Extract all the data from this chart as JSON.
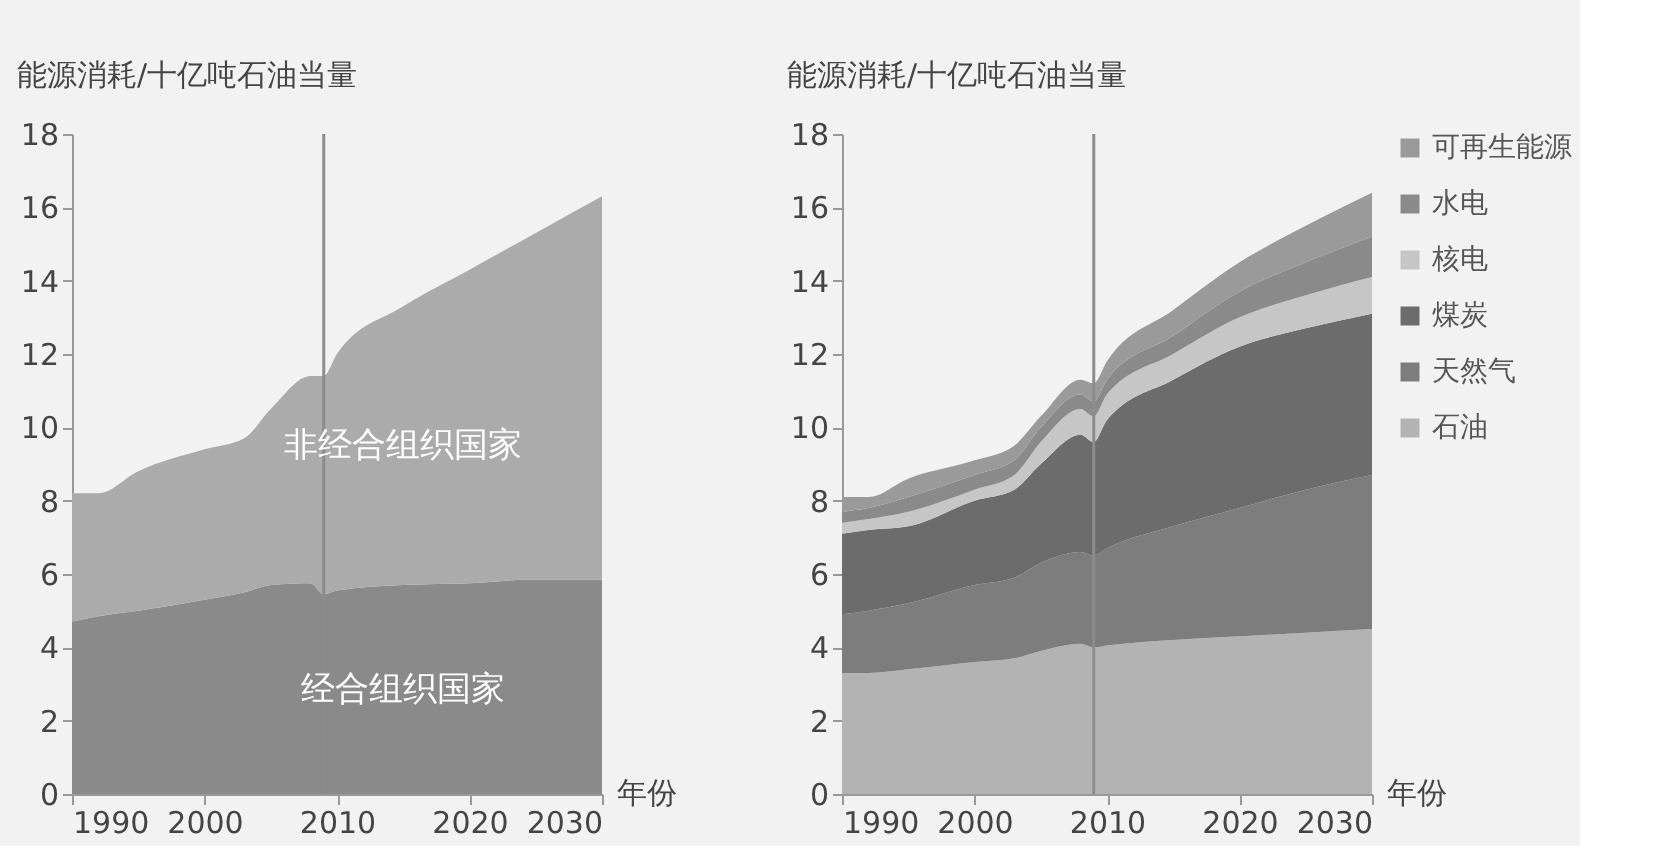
{
  "chart_data": [
    {
      "type": "area",
      "stacked": true,
      "ylabel": "能源消耗/十亿吨石油当量",
      "xlabel": "年份",
      "legend": false,
      "x": [
        1990,
        1992,
        1995,
        2000,
        2003,
        2005,
        2008,
        2009,
        2010,
        2015,
        2020,
        2025,
        2030
      ],
      "xlim": [
        1990,
        2030
      ],
      "xticks": [
        1990,
        2000,
        2010,
        2020,
        2030
      ],
      "ylim": [
        0,
        18
      ],
      "yticks": [
        0,
        2,
        4,
        6,
        8,
        10,
        12,
        14,
        16,
        18
      ],
      "grid": false,
      "ref_lines": [
        {
          "axis": "x",
          "value": 2009,
          "color": "#8c8c8c"
        }
      ],
      "series": [
        {
          "name": "经合组织国家",
          "color": "#8a8a8a",
          "values": [
            4.7,
            4.85,
            5.0,
            5.3,
            5.5,
            5.7,
            5.75,
            5.45,
            5.55,
            5.7,
            5.75,
            5.85,
            5.85
          ]
        },
        {
          "name": "非经合组织国家",
          "color": "#ababab",
          "values": [
            3.5,
            3.35,
            3.8,
            4.1,
            4.2,
            4.8,
            5.65,
            5.95,
            6.45,
            7.6,
            8.55,
            9.45,
            10.45
          ]
        }
      ]
    },
    {
      "type": "area",
      "stacked": true,
      "ylabel": "能源消耗/十亿吨石油当量",
      "xlabel": "年份",
      "legend": "right",
      "x": [
        1990,
        1992,
        1995,
        2000,
        2003,
        2005,
        2008,
        2009,
        2010,
        2015,
        2020,
        2025,
        2030
      ],
      "xlim": [
        1990,
        2030
      ],
      "xticks": [
        1990,
        2000,
        2010,
        2020,
        2030
      ],
      "ylim": [
        0,
        18
      ],
      "yticks": [
        0,
        2,
        4,
        6,
        8,
        10,
        12,
        14,
        16,
        18
      ],
      "grid": false,
      "ref_lines": [
        {
          "axis": "x",
          "value": 2009,
          "color": "#8c8c8c"
        }
      ],
      "series": [
        {
          "name": "石油",
          "color": "#b3b3b3",
          "values": [
            3.3,
            3.3,
            3.4,
            3.6,
            3.7,
            3.9,
            4.1,
            4.0,
            4.05,
            4.2,
            4.3,
            4.4,
            4.5
          ]
        },
        {
          "name": "天然气",
          "color": "#7d7d7d",
          "values": [
            1.6,
            1.7,
            1.8,
            2.1,
            2.2,
            2.4,
            2.5,
            2.5,
            2.65,
            3.1,
            3.5,
            3.9,
            4.2
          ]
        },
        {
          "name": "煤炭",
          "color": "#6c6c6c",
          "values": [
            2.2,
            2.2,
            2.1,
            2.3,
            2.4,
            2.7,
            3.2,
            3.1,
            3.5,
            4.0,
            4.4,
            4.4,
            4.4
          ]
        },
        {
          "name": "核电",
          "color": "#c6c6c6",
          "values": [
            0.3,
            0.3,
            0.4,
            0.3,
            0.4,
            0.6,
            0.7,
            0.7,
            0.7,
            0.7,
            0.8,
            0.9,
            1.0
          ]
        },
        {
          "name": "水电",
          "color": "#8a8a8a",
          "values": [
            0.3,
            0.3,
            0.4,
            0.4,
            0.4,
            0.4,
            0.4,
            0.4,
            0.4,
            0.5,
            0.7,
            0.9,
            1.1
          ]
        },
        {
          "name": "可再生能源",
          "color": "#9a9a9a",
          "values": [
            0.4,
            0.3,
            0.5,
            0.4,
            0.4,
            0.3,
            0.4,
            0.5,
            0.5,
            0.7,
            0.8,
            1.0,
            1.2
          ]
        }
      ]
    }
  ]
}
